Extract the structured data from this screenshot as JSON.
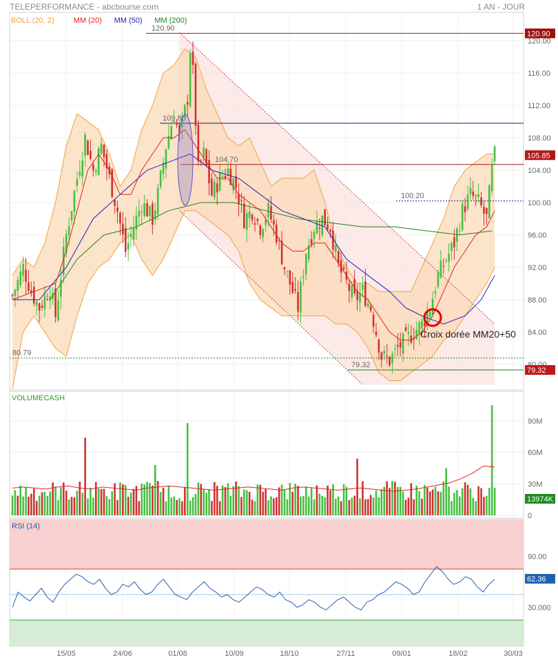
{
  "header": {
    "title": "TELEPERFORMANCE - abcbourse.com",
    "period": "1 AN - JOUR"
  },
  "colors": {
    "boll": "#f0a040",
    "mm20": "#e02020",
    "mm50": "#2020c0",
    "mm200": "#208020",
    "rsi": "#2060b0",
    "up": "#44c040",
    "down": "#d03030"
  },
  "chart_data": [
    {
      "type": "line",
      "panel": "price",
      "legend": [
        {
          "name": "BOLL (20, 2)",
          "color": "#f0a040"
        },
        {
          "name": "MM (20)",
          "color": "#e02020"
        },
        {
          "name": "MM (50)",
          "color": "#2020c0"
        },
        {
          "name": "MM (200)",
          "color": "#208020"
        }
      ],
      "ylim": [
        77.5,
        122.5
      ],
      "y_ticks": [
        "120.00",
        "116.00",
        "112.00",
        "108.00",
        "104.00",
        "100.00",
        "96.00",
        "92.00",
        "88.00",
        "84.00",
        "80.00"
      ],
      "x_ticks": [
        "15/05",
        "24/06",
        "01/08",
        "10/09",
        "18/10",
        "27/11",
        "09/01",
        "18/02",
        "30/03"
      ],
      "levels": [
        {
          "label": "120.90",
          "value": 120.9,
          "tag": "120.90",
          "color": "#a01818"
        },
        {
          "label": "109.80",
          "value": 109.8,
          "color": "#1a1a6a"
        },
        {
          "label": "104.70",
          "value": 104.7,
          "tag": "105.85",
          "color": "#a01818"
        },
        {
          "label": "100.20",
          "value": 100.2,
          "color": "#2020a0"
        },
        {
          "label": "80.79",
          "value": 80.79,
          "color": "#208020"
        },
        {
          "label": "79.32",
          "value": 79.32,
          "tag": "79.32",
          "color": "#208020"
        }
      ],
      "last_price": 105.85,
      "annotation": "Croix dorée MM20+50",
      "close_path": [
        [
          0,
          88.5
        ],
        [
          4,
          92
        ],
        [
          7,
          89
        ],
        [
          10,
          87
        ],
        [
          14,
          89.5
        ],
        [
          16,
          86
        ],
        [
          20,
          96
        ],
        [
          24,
          103
        ],
        [
          27,
          108
        ],
        [
          30,
          104
        ],
        [
          33,
          107
        ],
        [
          36,
          103
        ],
        [
          39,
          99
        ],
        [
          42,
          94
        ],
        [
          45,
          97
        ],
        [
          48,
          100
        ],
        [
          52,
          98
        ],
        [
          54,
          101
        ],
        [
          57,
          107
        ],
        [
          60,
          111
        ],
        [
          62,
          108
        ],
        [
          65,
          113
        ],
        [
          66,
          119
        ],
        [
          67,
          116
        ],
        [
          69,
          104
        ],
        [
          71,
          106
        ],
        [
          74,
          101
        ],
        [
          77,
          103
        ],
        [
          80,
          104
        ],
        [
          83,
          102
        ],
        [
          86,
          98
        ],
        [
          89,
          99
        ],
        [
          92,
          97
        ],
        [
          95,
          99
        ],
        [
          98,
          96
        ],
        [
          101,
          92
        ],
        [
          104,
          89
        ],
        [
          106,
          87
        ],
        [
          109,
          94
        ],
        [
          112,
          97
        ],
        [
          115,
          98
        ],
        [
          118,
          97
        ],
        [
          121,
          92
        ],
        [
          124,
          90
        ],
        [
          127,
          88
        ],
        [
          130,
          89
        ],
        [
          133,
          87
        ],
        [
          135,
          84
        ],
        [
          137,
          81
        ],
        [
          140,
          80.5
        ],
        [
          143,
          82
        ],
        [
          146,
          83
        ],
        [
          149,
          84
        ],
        [
          152,
          85
        ],
        [
          155,
          87
        ],
        [
          158,
          91
        ],
        [
          161,
          93
        ],
        [
          164,
          95
        ],
        [
          167,
          99
        ],
        [
          170,
          101
        ],
        [
          173,
          100
        ],
        [
          176,
          98
        ],
        [
          178,
          104
        ],
        [
          179,
          105.85
        ]
      ],
      "boll_upper_path": [
        [
          0,
          91
        ],
        [
          4,
          93
        ],
        [
          8,
          92
        ],
        [
          12,
          95
        ],
        [
          16,
          100
        ],
        [
          20,
          107
        ],
        [
          24,
          111
        ],
        [
          28,
          110
        ],
        [
          32,
          109
        ],
        [
          36,
          106
        ],
        [
          40,
          102
        ],
        [
          44,
          104
        ],
        [
          48,
          109
        ],
        [
          52,
          112
        ],
        [
          56,
          116
        ],
        [
          60,
          117
        ],
        [
          64,
          119
        ],
        [
          68,
          118
        ],
        [
          72,
          114
        ],
        [
          76,
          111
        ],
        [
          80,
          108
        ],
        [
          84,
          107
        ],
        [
          88,
          108
        ],
        [
          92,
          105
        ],
        [
          96,
          102
        ],
        [
          100,
          103
        ],
        [
          104,
          103
        ],
        [
          108,
          103
        ],
        [
          112,
          104
        ],
        [
          116,
          100
        ],
        [
          120,
          95
        ],
        [
          124,
          92
        ],
        [
          128,
          90
        ],
        [
          132,
          90
        ],
        [
          136,
          89
        ],
        [
          140,
          89
        ],
        [
          144,
          89
        ],
        [
          148,
          89
        ],
        [
          152,
          92
        ],
        [
          156,
          95
        ],
        [
          160,
          98
        ],
        [
          164,
          102
        ],
        [
          168,
          104
        ],
        [
          172,
          105
        ],
        [
          176,
          106
        ],
        [
          179,
          106
        ]
      ],
      "boll_lower_path": [
        [
          0,
          77
        ],
        [
          4,
          84
        ],
        [
          8,
          86
        ],
        [
          12,
          84
        ],
        [
          16,
          82
        ],
        [
          20,
          81
        ],
        [
          24,
          86
        ],
        [
          28,
          90
        ],
        [
          32,
          92
        ],
        [
          36,
          93
        ],
        [
          40,
          95
        ],
        [
          44,
          96
        ],
        [
          48,
          93
        ],
        [
          52,
          91
        ],
        [
          56,
          93
        ],
        [
          60,
          96
        ],
        [
          64,
          99
        ],
        [
          68,
          99
        ],
        [
          72,
          98
        ],
        [
          76,
          97
        ],
        [
          80,
          96
        ],
        [
          84,
          94
        ],
        [
          88,
          90
        ],
        [
          92,
          88
        ],
        [
          96,
          87
        ],
        [
          100,
          86
        ],
        [
          104,
          86
        ],
        [
          108,
          86
        ],
        [
          112,
          86
        ],
        [
          116,
          86
        ],
        [
          120,
          85
        ],
        [
          124,
          85
        ],
        [
          128,
          84
        ],
        [
          132,
          82
        ],
        [
          136,
          79
        ],
        [
          140,
          78
        ],
        [
          144,
          78
        ],
        [
          148,
          79
        ],
        [
          152,
          80
        ],
        [
          156,
          81
        ],
        [
          160,
          83
        ],
        [
          164,
          84
        ],
        [
          168,
          86
        ],
        [
          172,
          88
        ],
        [
          176,
          90
        ],
        [
          179,
          92
        ]
      ],
      "mm20_path": [
        [
          0,
          88
        ],
        [
          8,
          89
        ],
        [
          16,
          90
        ],
        [
          20,
          94
        ],
        [
          24,
          99
        ],
        [
          28,
          104
        ],
        [
          32,
          106
        ],
        [
          36,
          104
        ],
        [
          40,
          101
        ],
        [
          44,
          101
        ],
        [
          48,
          104
        ],
        [
          52,
          106
        ],
        [
          56,
          108
        ],
        [
          60,
          108
        ],
        [
          64,
          109
        ],
        [
          68,
          107
        ],
        [
          72,
          105
        ],
        [
          76,
          103
        ],
        [
          80,
          103
        ],
        [
          84,
          101
        ],
        [
          88,
          100
        ],
        [
          92,
          99
        ],
        [
          96,
          97
        ],
        [
          100,
          95
        ],
        [
          104,
          94
        ],
        [
          108,
          94
        ],
        [
          112,
          95
        ],
        [
          116,
          95
        ],
        [
          120,
          93
        ],
        [
          124,
          91
        ],
        [
          128,
          89
        ],
        [
          132,
          88
        ],
        [
          136,
          86
        ],
        [
          140,
          84
        ],
        [
          144,
          83
        ],
        [
          148,
          83
        ],
        [
          152,
          84
        ],
        [
          156,
          86
        ],
        [
          160,
          89
        ],
        [
          164,
          92
        ],
        [
          168,
          94
        ],
        [
          172,
          96
        ],
        [
          176,
          97
        ],
        [
          179,
          99
        ]
      ],
      "mm50_path": [
        [
          0,
          88
        ],
        [
          10,
          88
        ],
        [
          20,
          92
        ],
        [
          30,
          98
        ],
        [
          40,
          101
        ],
        [
          50,
          104
        ],
        [
          58,
          105
        ],
        [
          66,
          106
        ],
        [
          74,
          104
        ],
        [
          84,
          103
        ],
        [
          92,
          101
        ],
        [
          100,
          99
        ],
        [
          108,
          98
        ],
        [
          116,
          97
        ],
        [
          124,
          93
        ],
        [
          132,
          91
        ],
        [
          140,
          89
        ],
        [
          146,
          87
        ],
        [
          152,
          86
        ],
        [
          160,
          85
        ],
        [
          168,
          86
        ],
        [
          174,
          88
        ],
        [
          179,
          91
        ]
      ],
      "mm200_path": [
        [
          14,
          88
        ],
        [
          24,
          93
        ],
        [
          34,
          96
        ],
        [
          46,
          97
        ],
        [
          58,
          99
        ],
        [
          70,
          100
        ],
        [
          82,
          100
        ],
        [
          94,
          99
        ],
        [
          106,
          98
        ],
        [
          118,
          97.5
        ],
        [
          130,
          97
        ],
        [
          142,
          97
        ],
        [
          154,
          96.5
        ],
        [
          166,
          96
        ],
        [
          178,
          96.5
        ]
      ],
      "channel_upper": [
        [
          62,
          121
        ],
        [
          179,
          85
        ]
      ],
      "channel_lower": [
        [
          62,
          99
        ],
        [
          130,
          77.5
        ]
      ],
      "channel_fill": [
        [
          62,
          121
        ],
        [
          179,
          85
        ],
        [
          179,
          77.5
        ],
        [
          130,
          77.5
        ],
        [
          62,
          99
        ]
      ]
    },
    {
      "type": "bar",
      "panel": "volume",
      "title": "VOLUMECASH",
      "ylim": [
        0,
        110
      ],
      "y_ticks": [
        "90M",
        "60M",
        "30M",
        "0"
      ],
      "last_value": "13974K",
      "spikes": [
        [
          27,
          74
        ],
        [
          65,
          88
        ],
        [
          53,
          48
        ],
        [
          128,
          54
        ],
        [
          161,
          45
        ],
        [
          178,
          105
        ]
      ],
      "base_volume": 22,
      "ma_values": [
        26,
        27,
        26,
        25,
        27,
        28,
        26,
        25,
        27,
        26,
        25,
        24,
        26,
        27,
        28,
        27,
        26,
        25,
        24,
        25,
        26,
        27,
        26,
        25,
        24,
        26,
        27,
        26,
        25,
        24,
        25,
        26,
        25,
        24,
        23,
        24,
        25,
        27,
        29,
        31,
        35,
        40,
        47,
        46
      ]
    },
    {
      "type": "line",
      "panel": "rsi",
      "title": "RSI (14)",
      "ylim": [
        10,
        100
      ],
      "y_ticks": [
        "90.00",
        "30.000"
      ],
      "overbought": 70,
      "oversold": 30,
      "mid": 50,
      "last_value": "62.36",
      "values": [
        40,
        52,
        48,
        45,
        50,
        55,
        48,
        44,
        52,
        58,
        62,
        66,
        64,
        60,
        58,
        62,
        55,
        50,
        52,
        58,
        56,
        60,
        54,
        50,
        52,
        58,
        62,
        56,
        50,
        48,
        46,
        52,
        56,
        60,
        55,
        52,
        48,
        50,
        46,
        44,
        48,
        52,
        56,
        54,
        50,
        48,
        52,
        46,
        44,
        40,
        42,
        46,
        44,
        40,
        38,
        42,
        46,
        48,
        44,
        40,
        38,
        44,
        46,
        50,
        52,
        56,
        60,
        58,
        55,
        50,
        52,
        60,
        66,
        72,
        68,
        62,
        58,
        60,
        64,
        62,
        56,
        52,
        58,
        62
      ]
    }
  ]
}
